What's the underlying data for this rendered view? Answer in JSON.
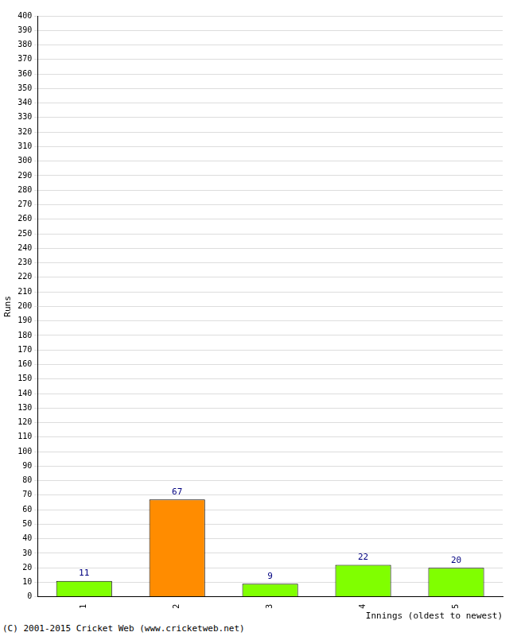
{
  "chart_data": {
    "type": "bar",
    "categories": [
      "1",
      "2",
      "3",
      "4",
      "5"
    ],
    "values": [
      11,
      67,
      9,
      22,
      20
    ],
    "colors": [
      "#80ff00",
      "#ff8c00",
      "#80ff00",
      "#80ff00",
      "#80ff00"
    ],
    "xlabel": "Innings (oldest to newest)",
    "ylabel": "Runs",
    "ylim": [
      0,
      400
    ],
    "yticks": [
      0,
      10,
      20,
      30,
      40,
      50,
      60,
      70,
      80,
      90,
      100,
      110,
      120,
      130,
      140,
      150,
      160,
      170,
      180,
      190,
      200,
      210,
      220,
      230,
      240,
      250,
      260,
      270,
      280,
      290,
      300,
      310,
      320,
      330,
      340,
      350,
      360,
      370,
      380,
      390,
      400
    ],
    "grid": true,
    "data_labels": true,
    "annotations": [
      "(C) 2001-2015 Cricket Web (www.cricketweb.net)"
    ]
  }
}
